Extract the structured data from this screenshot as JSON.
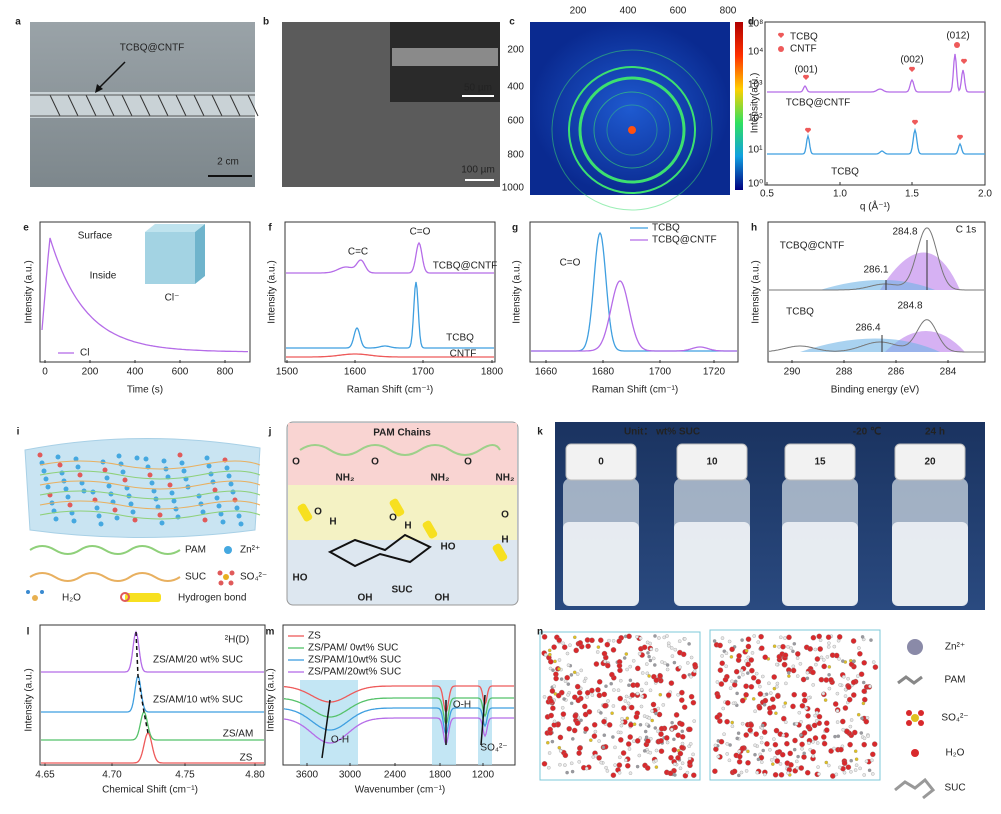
{
  "figure": {
    "a": {
      "label": "a",
      "annotation": "TCBQ@CNTF",
      "scale_bar": "2 cm"
    },
    "b": {
      "label": "b",
      "inset_scale_bar": "50 µm",
      "scale_bar": "100 µm"
    },
    "c": {
      "label": "c",
      "xticks": [
        "200",
        "400",
        "600",
        "800"
      ],
      "yticks": [
        "200",
        "400",
        "600",
        "800",
        "1000"
      ],
      "colorbar_ticks": [
        "10⁸",
        "10⁴",
        "10³",
        "10²",
        "10¹",
        "10⁰"
      ]
    },
    "d": {
      "label": "d",
      "ylabel": "Intensity(a.u.)",
      "xlabel": "q (Å⁻¹)",
      "xticks": [
        "0.5",
        "1.0",
        "1.5",
        "2.0"
      ],
      "legend": [
        "TCBQ",
        "CNTF"
      ],
      "peaks": [
        "(001)",
        "(002)",
        "(012)"
      ],
      "curve_labels": [
        "TCBQ@CNTF",
        "TCBQ"
      ]
    },
    "e": {
      "label": "e",
      "ylabel": "Intensity (a.u.)",
      "xlabel": "Time (s)",
      "xticks": [
        "0",
        "200",
        "400",
        "600",
        "800"
      ],
      "inset_labels": [
        "Surface",
        "Inside",
        "Cl⁻"
      ],
      "legend": [
        "Cl"
      ]
    },
    "f": {
      "label": "f",
      "ylabel": "Intensity (a.u.)",
      "xlabel": "Raman Shift (cm⁻¹)",
      "xticks": [
        "1500",
        "1600",
        "1700",
        "1800"
      ],
      "peaks": [
        "C=C",
        "C=O"
      ],
      "curve_labels": [
        "TCBQ@CNTF",
        "TCBQ",
        "CNTF"
      ]
    },
    "g": {
      "label": "g",
      "ylabel": "Intensity (a.u.)",
      "xlabel": "Raman Shift (cm⁻¹)",
      "xticks": [
        "1660",
        "1680",
        "1700",
        "1720"
      ],
      "legend": [
        "TCBQ",
        "TCBQ@CNTF"
      ],
      "peak": "C=O"
    },
    "h": {
      "label": "h",
      "ylabel": "Intensity (a.u.)",
      "xlabel": "Binding energy (eV)",
      "xticks": [
        "290",
        "288",
        "286",
        "284"
      ],
      "title": "C 1s",
      "curve_labels": [
        "TCBQ@CNTF",
        "TCBQ"
      ],
      "peaks_top": [
        "284.8",
        "286.1"
      ],
      "peaks_bottom": [
        "284.8",
        "286.4"
      ]
    },
    "i": {
      "label": "i",
      "legend": [
        "PAM",
        "Zn²⁺",
        "SUC",
        "SO₄²⁻",
        "H₂O",
        "Hydrogen bond"
      ]
    },
    "j": {
      "label": "j",
      "title": "PAM Chains",
      "amines": [
        "NH₂",
        "NH₂",
        "NH₂"
      ],
      "atoms": [
        "O",
        "O",
        "O",
        "O",
        "H",
        "O",
        "H",
        "O",
        "H"
      ],
      "hydroxyls": [
        "HO",
        "HO",
        "OH",
        "OH"
      ],
      "sugar": "SUC"
    },
    "k": {
      "label": "k",
      "unit": "Unit： wt% SUC",
      "temperature": "-20 ℃",
      "time": "24 h",
      "vials": [
        "0",
        "10",
        "15",
        "20"
      ]
    },
    "l": {
      "label": "l",
      "ylabel": "Intensity (a.u.)",
      "xlabel": "Chemical Shift (cm⁻¹)",
      "xticks": [
        "4.65",
        "4.70",
        "4.75",
        "4.80"
      ],
      "note": "²H(D)",
      "curve_labels": [
        "ZS/AM/20 wt% SUC",
        "ZS/AM/10 wt% SUC",
        "ZS/AM",
        "ZS"
      ]
    },
    "m": {
      "label": "m",
      "ylabel": "Intensity (a.u.)",
      "xlabel": "Wavenumber (cm⁻¹)",
      "xticks": [
        "3600",
        "3000",
        "2400",
        "1800",
        "1200"
      ],
      "legend": [
        "ZS",
        "ZS/PAM/ 0wt% SUC",
        "ZS/PAM/10wt% SUC",
        "ZS/PAM/20wt% SUC"
      ],
      "bands": [
        "O-H",
        "O-H",
        "SO₄²⁻"
      ]
    },
    "n": {
      "label": "n",
      "legend": [
        "Zn²⁺",
        "PAM",
        "SO₄²⁻",
        "H₂O",
        "SUC"
      ]
    }
  }
}
